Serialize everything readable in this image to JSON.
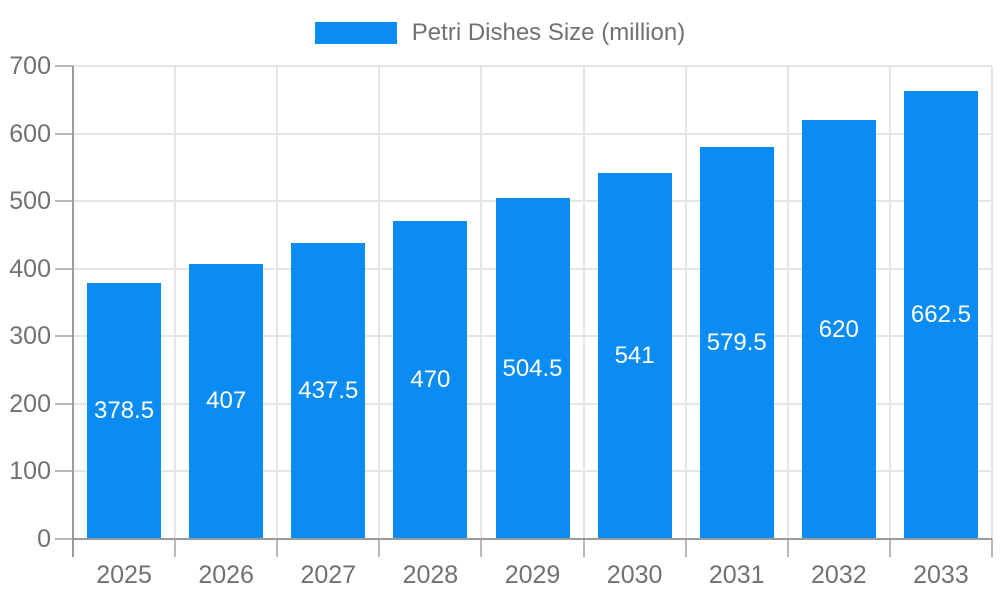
{
  "legend": {
    "label": "Petri Dishes Size (million)"
  },
  "colors": {
    "bar": "#0b8cf2",
    "axis": "#9b9b9b",
    "grid": "#e5e5e5",
    "tick": "#b8b8b8",
    "text": "#717171",
    "bar_label": "#ffffff",
    "background": "#ffffff"
  },
  "chart_data": {
    "type": "bar",
    "title": "Petri Dishes Size (million)",
    "series_name": "Petri Dishes Size (million)",
    "categories": [
      "2025",
      "2026",
      "2027",
      "2028",
      "2029",
      "2030",
      "2031",
      "2032",
      "2033"
    ],
    "values": [
      378.5,
      407,
      437.5,
      470,
      504.5,
      541,
      579.5,
      620,
      662.5
    ],
    "xlabel": "",
    "ylabel": "",
    "ylim": [
      0,
      700
    ],
    "y_ticks": [
      0,
      100,
      200,
      300,
      400,
      500,
      600,
      700
    ],
    "grid": true,
    "legend_position": "top",
    "value_labels": "inside-center"
  }
}
